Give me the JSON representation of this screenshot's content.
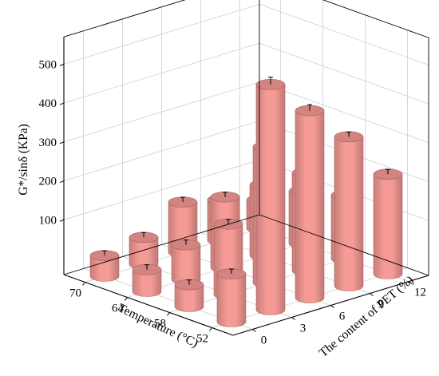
{
  "chart_data": {
    "type": "bar3d",
    "zlabel": "G*/sinδ (KPa)",
    "xlabel": "Temperature (°C)",
    "ylabel": "The content of PET (%)",
    "temperatures": [
      "52",
      "58",
      "64",
      "70"
    ],
    "pet_contents": [
      "0",
      "3",
      "6",
      "9",
      "12"
    ],
    "z_ticks": [
      "100",
      "200",
      "300",
      "400",
      "500"
    ],
    "zlim": [
      0,
      550
    ],
    "values": [
      [
        82,
        15,
        15,
        12
      ],
      [
        538,
        140,
        48,
        28
      ],
      [
        440,
        308,
        140,
        88
      ],
      [
        342,
        210,
        140,
        63
      ],
      [
        215,
        122,
        93,
        32
      ]
    ],
    "bar_color": "#f59a95",
    "grid": true
  }
}
